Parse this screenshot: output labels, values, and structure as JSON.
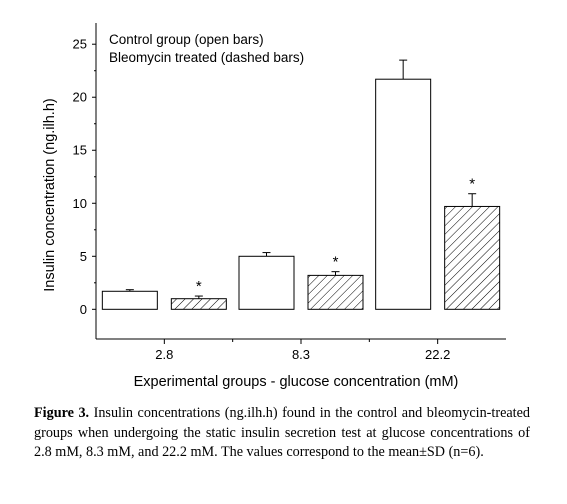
{
  "chart_data": {
    "type": "bar",
    "xlabel": "Experimental groups - glucose concentration (mM)",
    "ylabel": "Insulin concentration (ng.ilh.h)",
    "ylim": [
      -2.8,
      27
    ],
    "yticks": [
      0,
      5,
      10,
      15,
      20,
      25
    ],
    "categories": [
      "2.8",
      "8.3",
      "22.2"
    ],
    "series": [
      {
        "name": "Control group (open bars)",
        "style": "open",
        "values": [
          1.7,
          5.0,
          21.7
        ],
        "errors": [
          0.15,
          0.35,
          1.8
        ]
      },
      {
        "name": "Bleomycin treated (dashed bars)",
        "style": "hatched",
        "values": [
          1.0,
          3.2,
          9.7
        ],
        "errors": [
          0.25,
          0.35,
          1.2
        ]
      }
    ],
    "significance_marks": [
      "*",
      "*",
      "*"
    ],
    "grid": false,
    "legend_position": "top-left"
  },
  "caption": {
    "label": "Figure 3.",
    "text": "Insulin concentrations (ng.ilh.h) found in the control and bleomycin-treated groups when undergoing the static insulin secretion test at glucose concentrations of 2.8 mM, 8.3 mM, and 22.2 mM. The values correspond to the mean±SD (n=6)."
  },
  "colors": {
    "axis": "#000000",
    "bar_fill": "#ffffff",
    "bar_stroke": "#000000"
  }
}
